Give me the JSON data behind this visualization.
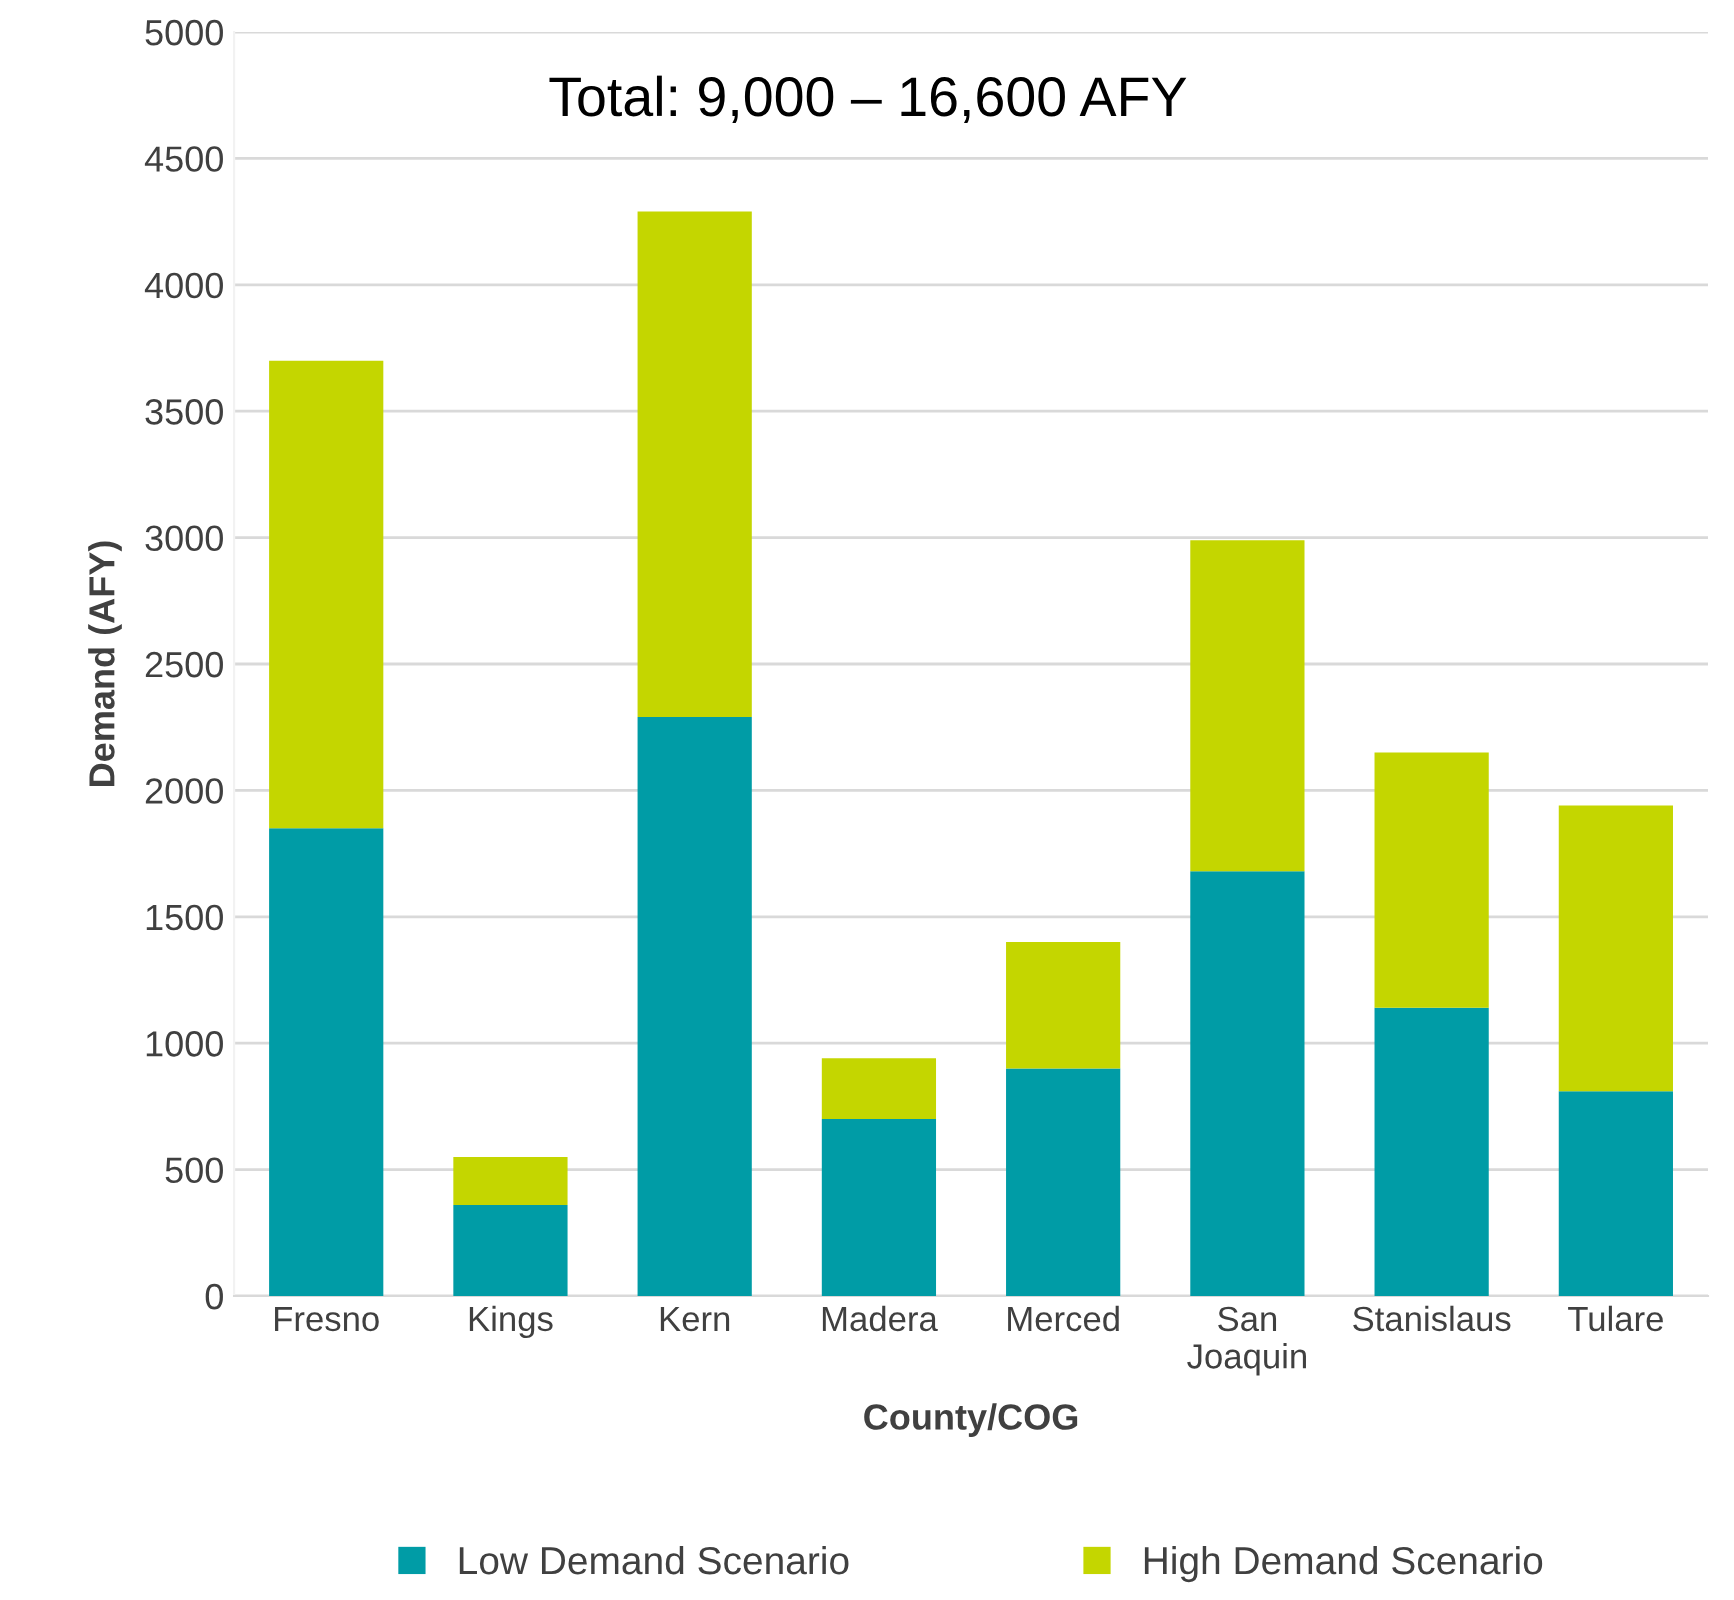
{
  "chart_data": {
    "type": "bar",
    "stacked": true,
    "categories": [
      "Fresno",
      "Kings",
      "Kern",
      "Madera",
      "Merced",
      "San\nJoaquin",
      "Stanislaus",
      "Tulare"
    ],
    "series": [
      {
        "name": "Low Demand Scenario",
        "color": "#009ca6",
        "values": [
          1850,
          360,
          2290,
          700,
          900,
          1680,
          1140,
          810
        ]
      },
      {
        "name": "High Demand Scenario",
        "color": "#c4d600",
        "values": [
          1850,
          190,
          2000,
          240,
          500,
          1310,
          1010,
          1130
        ]
      }
    ],
    "xlabel": "County/COG",
    "ylabel": "Demand (AFY)",
    "annotations": [
      "Total: 9,000 – 16,600 AFY"
    ],
    "ylim": [
      0,
      5000
    ],
    "yticks": [
      0,
      500,
      1000,
      1500,
      2000,
      2500,
      3000,
      3500,
      4000,
      4500,
      5000
    ],
    "grid": "y",
    "legend": "bottom"
  }
}
